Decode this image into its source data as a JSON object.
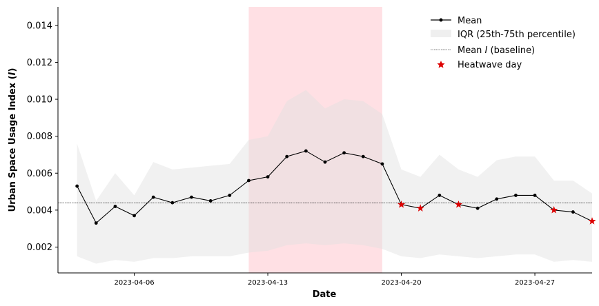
{
  "chart_data": {
    "type": "line",
    "xlabel": "Date",
    "ylabel": "Urban Space Usage Index (I)",
    "ylim": [
      0.0006,
      0.015
    ],
    "xlim": [
      "2023-04-02",
      "2023-04-30"
    ],
    "x_ticks": [
      "2023-04-06",
      "2023-04-13",
      "2023-04-20",
      "2023-04-27"
    ],
    "y_ticks": [
      "0.002",
      "0.004",
      "0.006",
      "0.008",
      "0.010",
      "0.012",
      "0.014"
    ],
    "grid": false,
    "legend_position": "top-right",
    "highlight_span": {
      "start": "2023-04-12",
      "end": "2023-04-19",
      "color": "#ffe0e4"
    },
    "baseline": {
      "name": "Mean I (baseline)",
      "value": 0.0044
    },
    "x": [
      "2023-04-03",
      "2023-04-04",
      "2023-04-05",
      "2023-04-06",
      "2023-04-07",
      "2023-04-08",
      "2023-04-09",
      "2023-04-10",
      "2023-04-11",
      "2023-04-12",
      "2023-04-13",
      "2023-04-14",
      "2023-04-15",
      "2023-04-16",
      "2023-04-17",
      "2023-04-18",
      "2023-04-19",
      "2023-04-20",
      "2023-04-21",
      "2023-04-22",
      "2023-04-23",
      "2023-04-24",
      "2023-04-25",
      "2023-04-26",
      "2023-04-27",
      "2023-04-28",
      "2023-04-29",
      "2023-04-30"
    ],
    "series": [
      {
        "name": "Mean",
        "color": "#000000",
        "values": [
          0.0053,
          0.0033,
          0.0042,
          0.0037,
          0.0047,
          0.0044,
          0.0047,
          0.0045,
          0.0048,
          0.0056,
          0.0058,
          0.0069,
          0.0072,
          0.0066,
          0.0071,
          0.0069,
          0.0065,
          0.0043,
          0.0041,
          0.0048,
          0.0043,
          0.0041,
          0.0046,
          0.0048,
          0.0048,
          0.004,
          0.0039,
          0.0034
        ]
      },
      {
        "name": "IQR (25th-75th percentile)",
        "color": "#e0e0e0",
        "lower": [
          0.0015,
          0.0011,
          0.0013,
          0.0012,
          0.0014,
          0.0014,
          0.0015,
          0.0015,
          0.0015,
          0.0017,
          0.0018,
          0.0021,
          0.0022,
          0.0021,
          0.0022,
          0.0021,
          0.0019,
          0.0015,
          0.0014,
          0.0016,
          0.0015,
          0.0014,
          0.0015,
          0.0016,
          0.0016,
          0.0012,
          0.0013,
          0.0012
        ],
        "upper": [
          0.0076,
          0.0045,
          0.006,
          0.0048,
          0.0066,
          0.0062,
          0.0063,
          0.0064,
          0.0065,
          0.0078,
          0.008,
          0.0099,
          0.0105,
          0.0095,
          0.01,
          0.0099,
          0.0092,
          0.0062,
          0.0058,
          0.007,
          0.0062,
          0.0058,
          0.0067,
          0.0069,
          0.0069,
          0.0056,
          0.0056,
          0.0049
        ]
      },
      {
        "name": "Heatwave day",
        "color": "#dd0000",
        "x": [
          "2023-04-20",
          "2023-04-21",
          "2023-04-23",
          "2023-04-28",
          "2023-04-30"
        ],
        "values": [
          0.0043,
          0.0041,
          0.0043,
          0.004,
          0.0034
        ]
      }
    ]
  }
}
